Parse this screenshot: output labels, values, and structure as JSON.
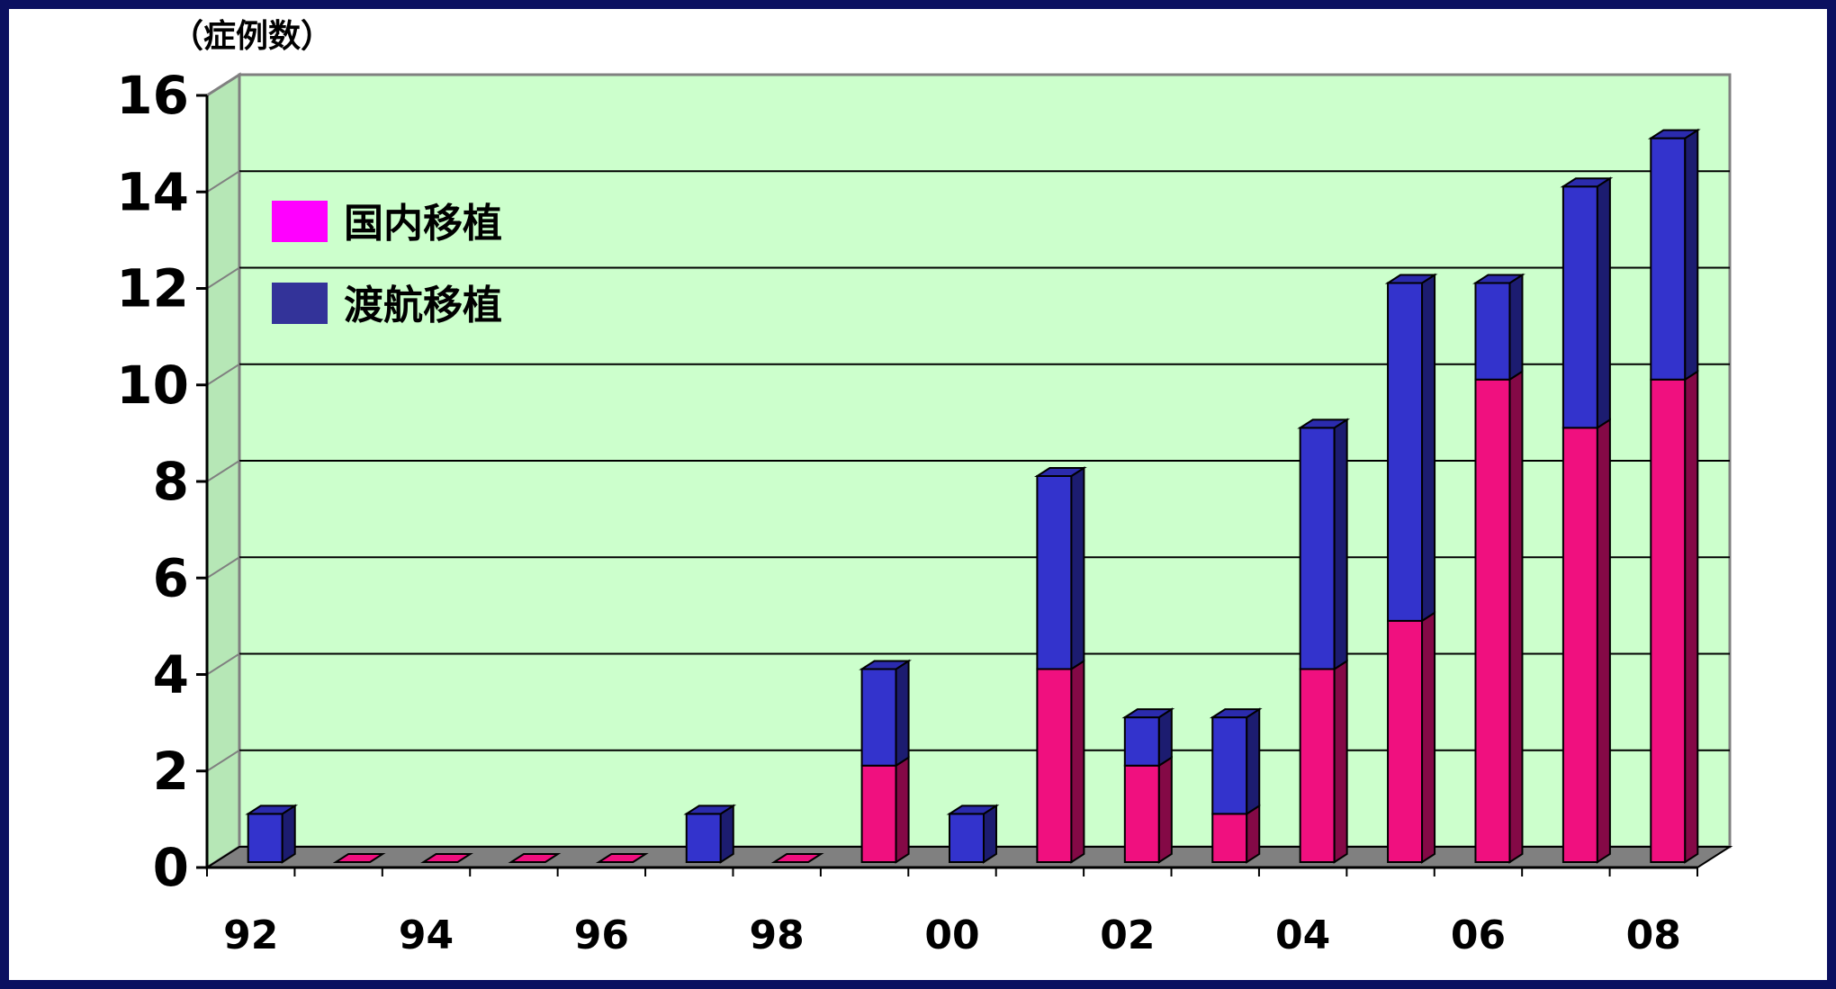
{
  "chart_data": {
    "type": "bar",
    "stacked": true,
    "three_d": true,
    "categories": [
      "92",
      "93",
      "94",
      "95",
      "96",
      "97",
      "98",
      "99",
      "00",
      "01",
      "02",
      "03",
      "04",
      "05",
      "06",
      "07",
      "08"
    ],
    "x_tick_labels": [
      "92",
      "94",
      "96",
      "98",
      "00",
      "02",
      "04",
      "06",
      "08"
    ],
    "y_tick_labels": [
      "0",
      "2",
      "4",
      "6",
      "8",
      "10",
      "12",
      "14",
      "16"
    ],
    "ylim": [
      0,
      16
    ],
    "ylabel": "（症例数）",
    "grid": true,
    "legend_position": "top-left",
    "series": [
      {
        "name": "国内移植",
        "color": "#f0107f",
        "legend_color": "#ff00ff",
        "values": [
          0,
          0,
          0,
          0,
          0,
          0,
          0,
          2,
          0,
          4,
          2,
          1,
          4,
          5,
          10,
          9,
          10
        ]
      },
      {
        "name": "渡航移植",
        "color": "#3333cc",
        "legend_color": "#333399",
        "values": [
          1,
          0,
          0,
          0,
          0,
          1,
          0,
          2,
          1,
          4,
          1,
          2,
          5,
          7,
          2,
          5,
          5
        ]
      }
    ]
  }
}
